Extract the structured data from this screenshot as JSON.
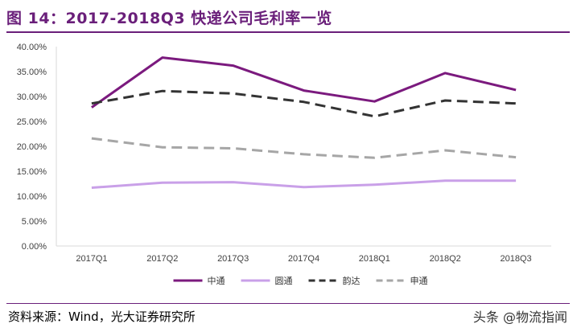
{
  "figure": {
    "title": "图 14：2017-2018Q3 快递公司毛利率一览",
    "source": "资料来源：Wind，光大证券研究所",
    "watermark": "头条 @物流指闻"
  },
  "chart_data": {
    "type": "line",
    "categories": [
      "2017Q1",
      "2017Q2",
      "2017Q3",
      "2017Q4",
      "2018Q1",
      "2018Q2",
      "2018Q3"
    ],
    "ylim": [
      0,
      0.4
    ],
    "yticks": [
      "0.00%",
      "5.00%",
      "10.00%",
      "15.00%",
      "20.00%",
      "25.00%",
      "30.00%",
      "35.00%",
      "40.00%"
    ],
    "grid": false,
    "legend_position": "bottom",
    "series": [
      {
        "name": "中通",
        "values": [
          0.278,
          0.378,
          0.362,
          0.312,
          0.29,
          0.347,
          0.313
        ],
        "color": "#7b1a7e",
        "dash": "solid"
      },
      {
        "name": "圆通",
        "values": [
          0.117,
          0.127,
          0.128,
          0.118,
          0.123,
          0.131,
          0.131
        ],
        "color": "#c9a0e8",
        "dash": "solid"
      },
      {
        "name": "韵达",
        "values": [
          0.286,
          0.311,
          0.306,
          0.289,
          0.26,
          0.292,
          0.286
        ],
        "color": "#333333",
        "dash": "dash"
      },
      {
        "name": "申通",
        "values": [
          0.216,
          0.198,
          0.196,
          0.184,
          0.177,
          0.192,
          0.178
        ],
        "color": "#a6a6a6",
        "dash": "dash"
      }
    ]
  }
}
